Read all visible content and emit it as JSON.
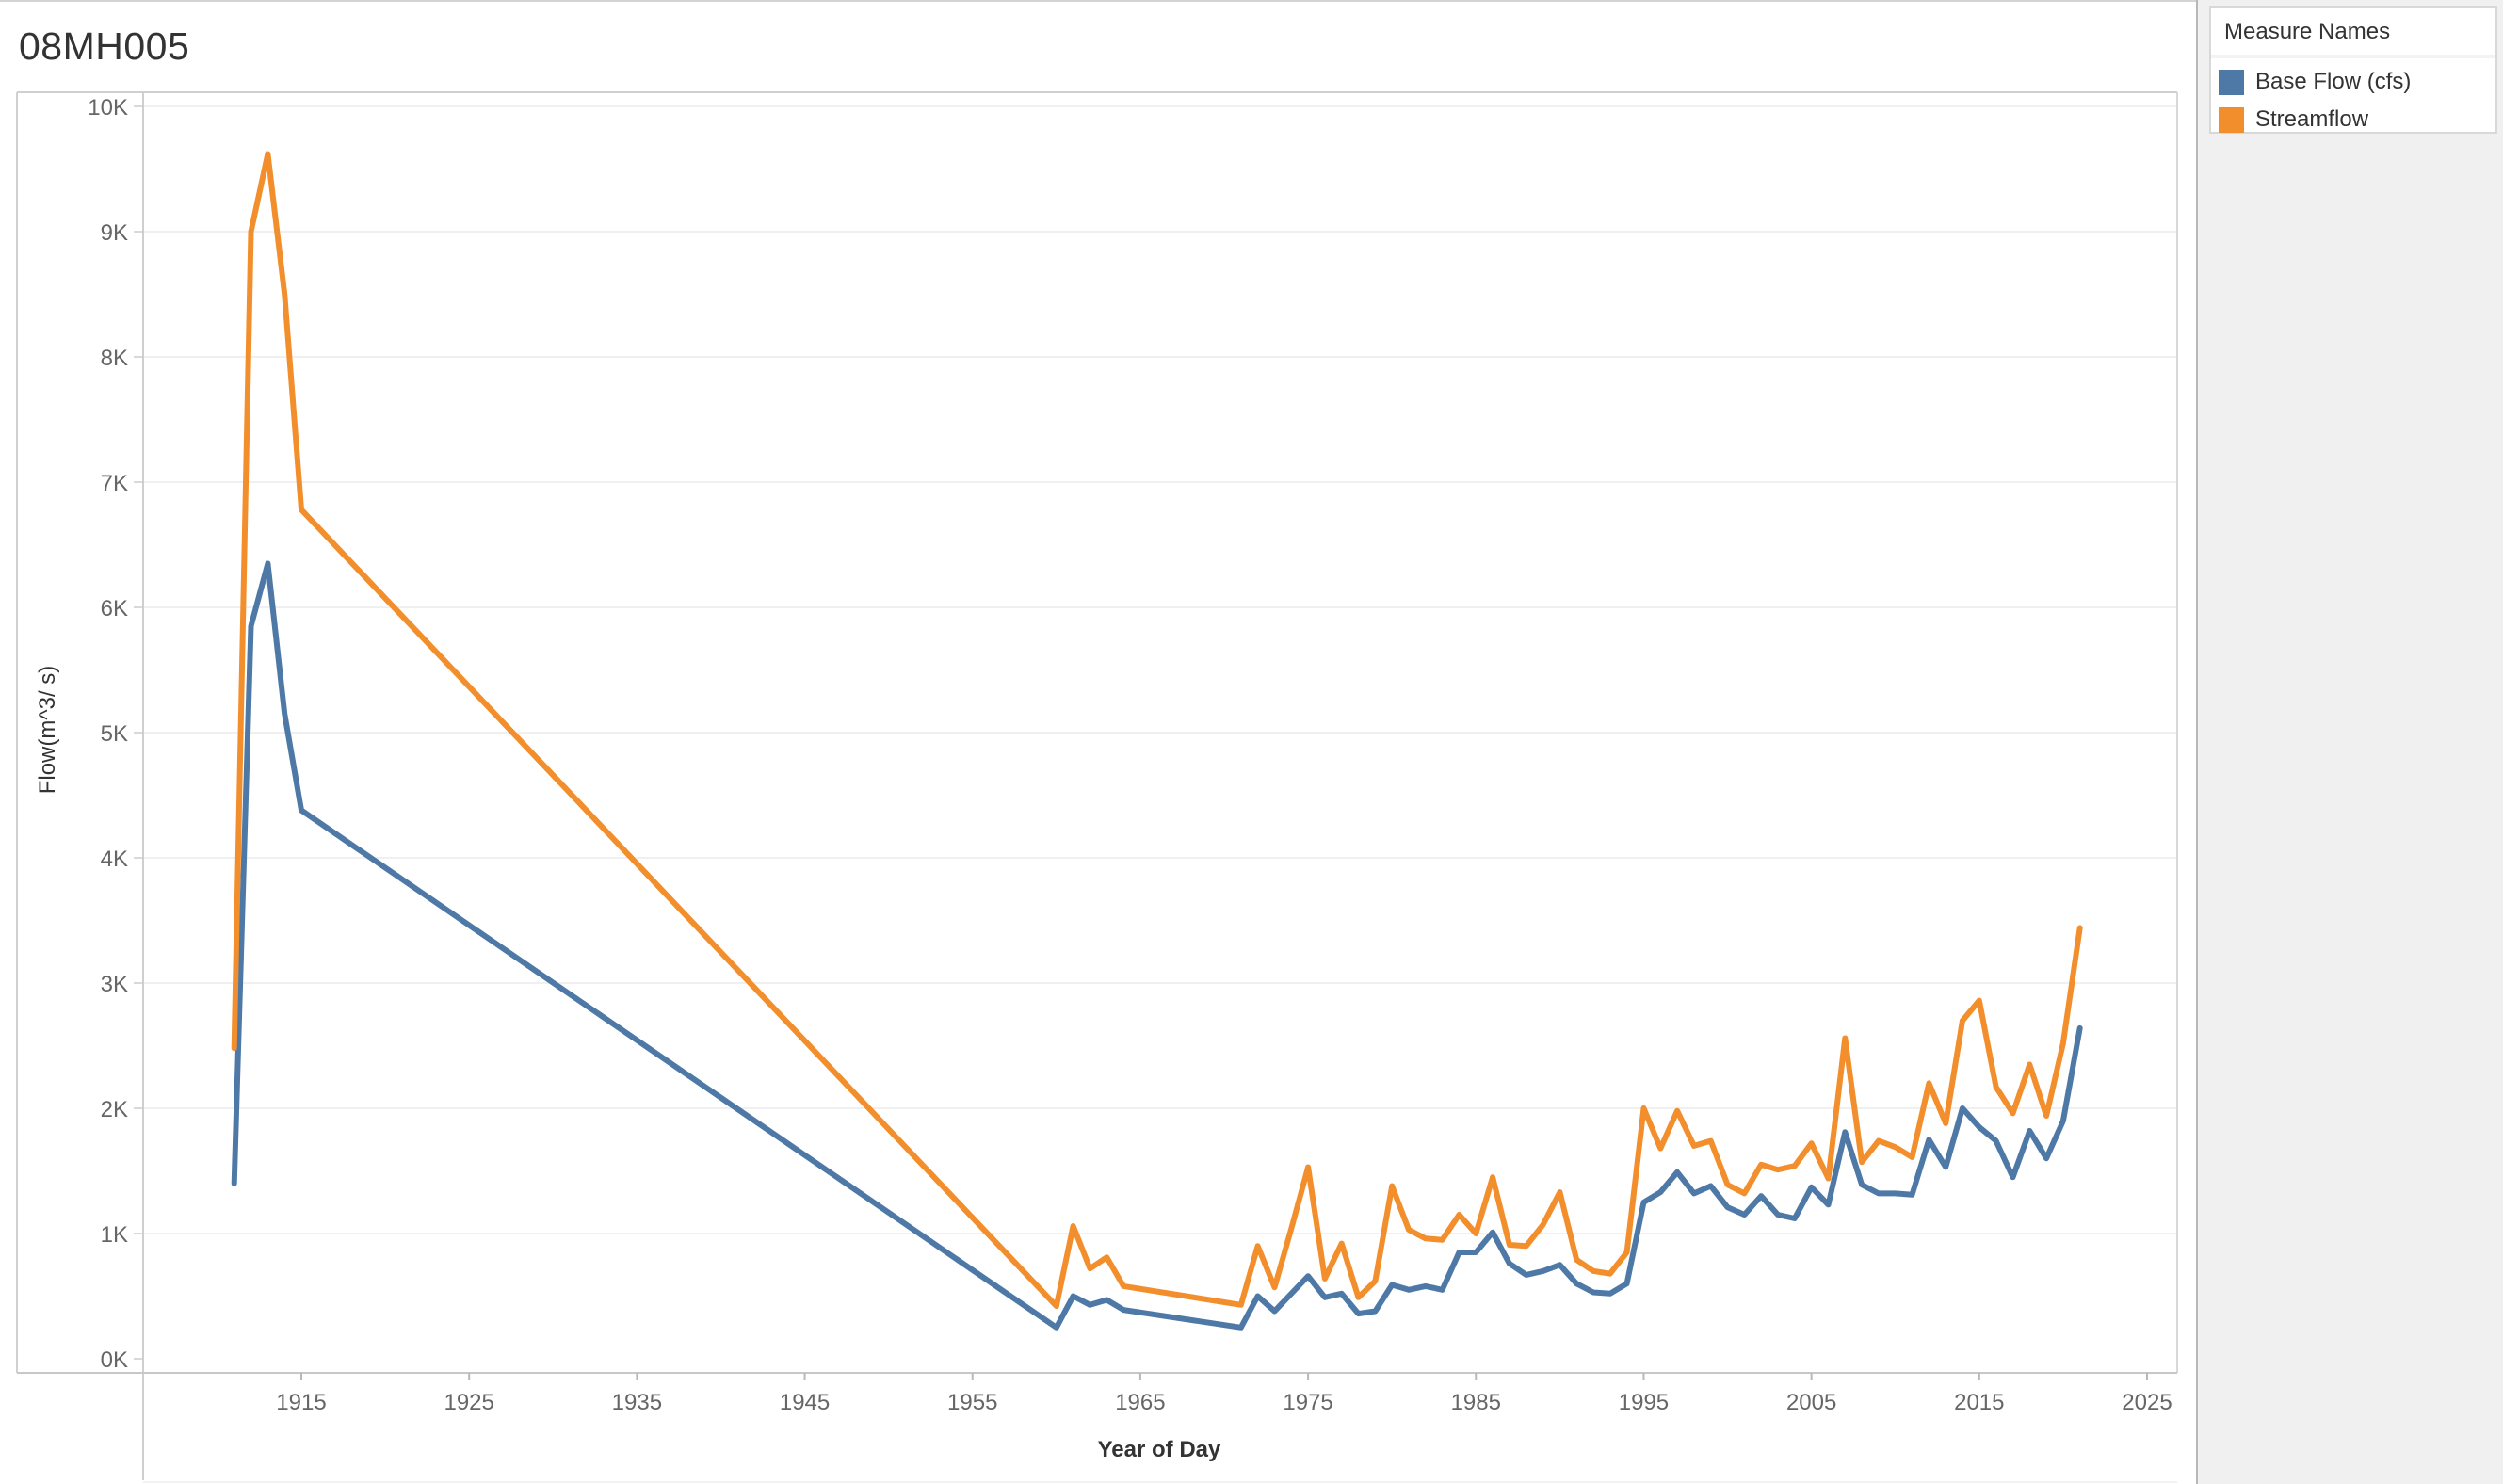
{
  "page_title": "08MH005",
  "legend": {
    "title": "Measure Names",
    "items": [
      {
        "label": "Base Flow (cfs)",
        "color": "#4e79a7"
      },
      {
        "label": "Streamflow",
        "color": "#f28e2b"
      }
    ]
  },
  "chart_data": {
    "type": "line",
    "xlabel": "Year of Day",
    "ylabel": "Flow(m^3/ s)",
    "xlim": [
      1905,
      2027
    ],
    "ylim": [
      0,
      10000
    ],
    "x_ticks": [
      1915,
      1925,
      1935,
      1945,
      1955,
      1965,
      1975,
      1985,
      1995,
      2005,
      2015,
      2025
    ],
    "y_ticks": [
      {
        "value": 0,
        "label": "0K"
      },
      {
        "value": 1000,
        "label": "1K"
      },
      {
        "value": 2000,
        "label": "2K"
      },
      {
        "value": 3000,
        "label": "3K"
      },
      {
        "value": 4000,
        "label": "4K"
      },
      {
        "value": 5000,
        "label": "5K"
      },
      {
        "value": 6000,
        "label": "6K"
      },
      {
        "value": 7000,
        "label": "7K"
      },
      {
        "value": 8000,
        "label": "8K"
      },
      {
        "value": 9000,
        "label": "9K"
      },
      {
        "value": 10000,
        "label": "10K"
      }
    ],
    "grid": true,
    "legend_position": "right",
    "series": [
      {
        "name": "Base Flow (cfs)",
        "color": "#4e79a7",
        "x": [
          1911,
          1912,
          1913,
          1914,
          1915,
          1960,
          1961,
          1962,
          1963,
          1964,
          1971,
          1972,
          1973,
          1974,
          1975,
          1976,
          1977,
          1978,
          1979,
          1980,
          1981,
          1982,
          1983,
          1984,
          1985,
          1986,
          1987,
          1988,
          1989,
          1990,
          1991,
          1992,
          1993,
          1994,
          1995,
          1996,
          1997,
          1998,
          1999,
          2000,
          2001,
          2002,
          2003,
          2004,
          2005,
          2006,
          2007,
          2008,
          2009,
          2010,
          2011,
          2012,
          2013,
          2014,
          2015,
          2016,
          2017,
          2018,
          2019,
          2020,
          2021
        ],
        "y": [
          1400,
          5850,
          6350,
          5150,
          4380,
          250,
          500,
          430,
          470,
          390,
          250,
          500,
          380,
          520,
          660,
          490,
          520,
          360,
          380,
          590,
          550,
          580,
          550,
          850,
          850,
          1010,
          760,
          670,
          700,
          750,
          600,
          530,
          520,
          600,
          1250,
          1330,
          1490,
          1320,
          1380,
          1210,
          1150,
          1300,
          1150,
          1120,
          1370,
          1230,
          1810,
          1390,
          1320,
          1320,
          1310,
          1750,
          1530,
          2000,
          1850,
          1740,
          1450,
          1820,
          1600,
          1900,
          2640
        ]
      },
      {
        "name": "Streamflow",
        "color": "#f28e2b",
        "x": [
          1911,
          1912,
          1913,
          1914,
          1915,
          1960,
          1961,
          1962,
          1963,
          1964,
          1971,
          1972,
          1973,
          1974,
          1975,
          1976,
          1977,
          1978,
          1979,
          1980,
          1981,
          1982,
          1983,
          1984,
          1985,
          1986,
          1987,
          1988,
          1989,
          1990,
          1991,
          1992,
          1993,
          1994,
          1995,
          1996,
          1997,
          1998,
          1999,
          2000,
          2001,
          2002,
          2003,
          2004,
          2005,
          2006,
          2007,
          2008,
          2009,
          2010,
          2011,
          2012,
          2013,
          2014,
          2015,
          2016,
          2017,
          2018,
          2019,
          2020,
          2021
        ],
        "y": [
          2480,
          9000,
          9620,
          8500,
          6780,
          420,
          1060,
          720,
          810,
          580,
          430,
          900,
          570,
          1040,
          1530,
          640,
          920,
          490,
          620,
          1380,
          1030,
          960,
          950,
          1150,
          1000,
          1450,
          910,
          900,
          1070,
          1330,
          790,
          700,
          680,
          850,
          2000,
          1680,
          1980,
          1700,
          1740,
          1390,
          1320,
          1550,
          1510,
          1540,
          1720,
          1440,
          2560,
          1570,
          1740,
          1690,
          1610,
          2200,
          1880,
          2700,
          2860,
          2170,
          1960,
          2350,
          1940,
          2520,
          3440
        ]
      }
    ]
  }
}
